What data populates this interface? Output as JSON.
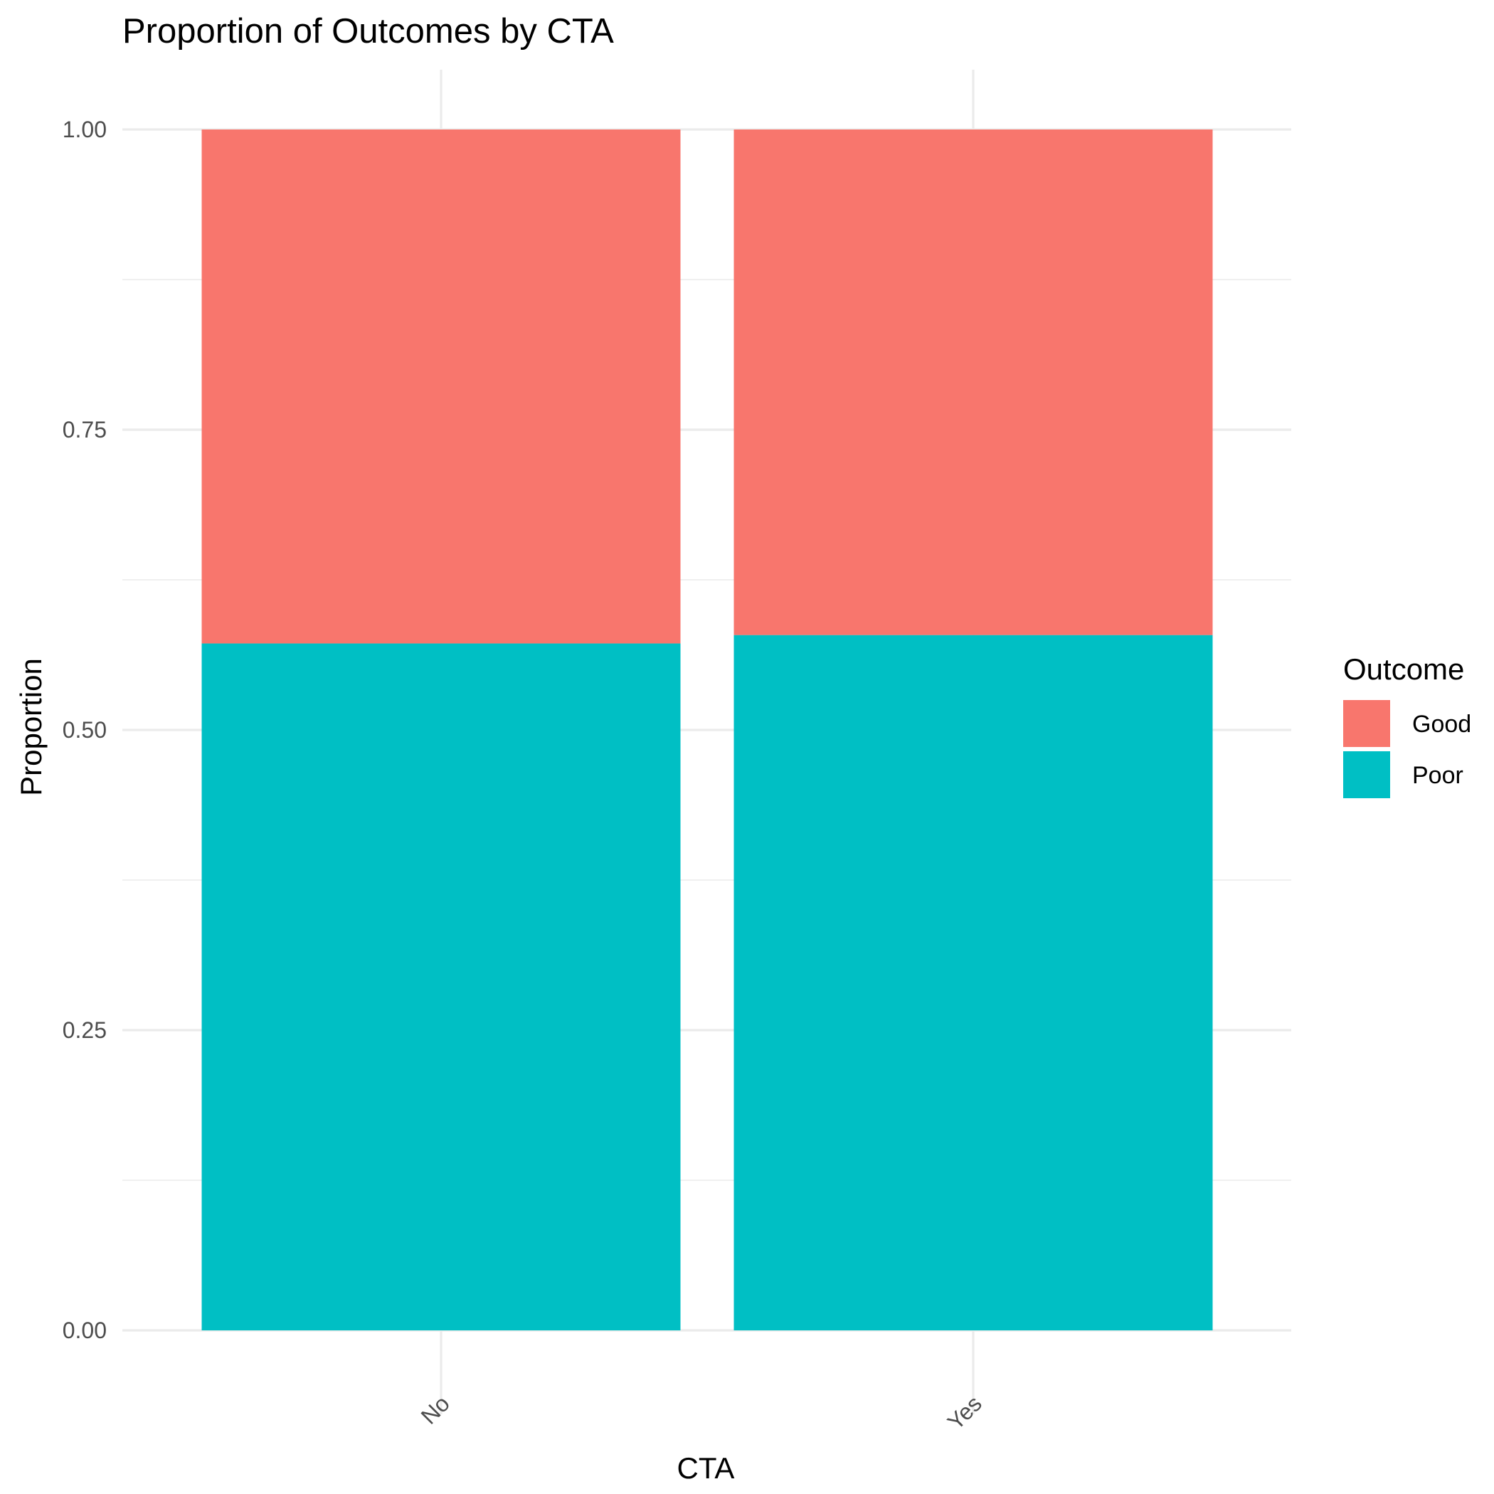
{
  "chart_data": {
    "type": "bar",
    "stacked": true,
    "title": "Proportion of Outcomes by CTA",
    "xlabel": "CTA",
    "ylabel": "Proportion",
    "categories": [
      "No",
      "Yes"
    ],
    "series": [
      {
        "name": "Poor",
        "color": "#00BFC4",
        "values": [
          0.572,
          0.579
        ]
      },
      {
        "name": "Good",
        "color": "#F8766D",
        "values": [
          0.428,
          0.421
        ]
      }
    ],
    "ylim": [
      0,
      1
    ],
    "y_ticks": [
      "0.00",
      "0.25",
      "0.50",
      "0.75",
      "1.00"
    ],
    "grid": true,
    "legend": {
      "title": "Outcome",
      "position": "right",
      "entries": [
        {
          "label": "Good",
          "color": "#F8766D"
        },
        {
          "label": "Poor",
          "color": "#00BFC4"
        }
      ]
    }
  }
}
